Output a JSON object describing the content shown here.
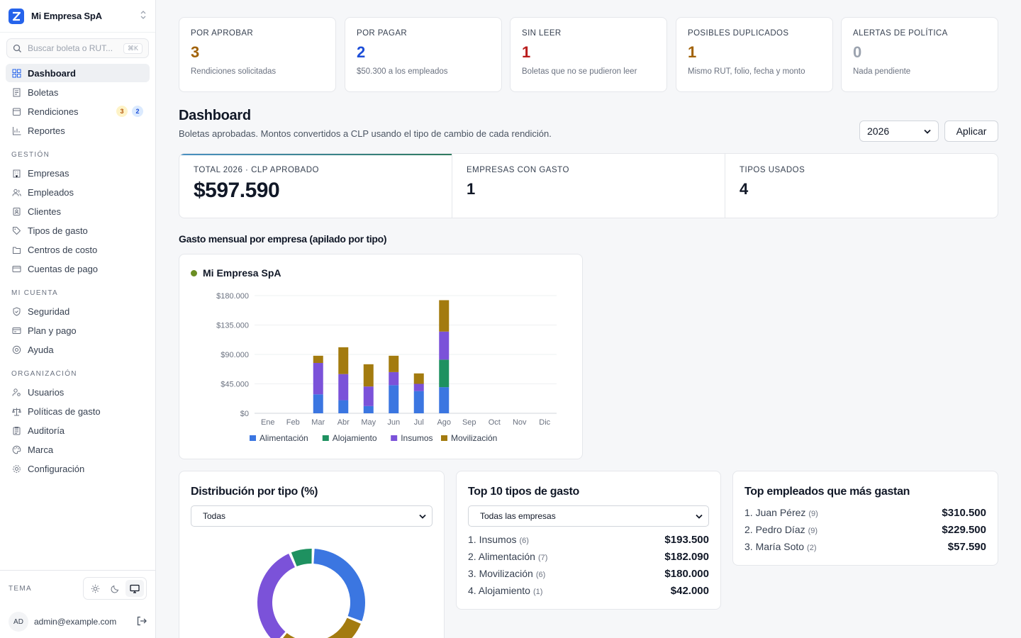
{
  "sidebar": {
    "brand": "Mi Empresa SpA",
    "search_placeholder": "Buscar boleta o RUT...",
    "search_shortcut": "⌘K",
    "main_items": [
      {
        "label": "Dashboard",
        "icon": "grid-icon"
      },
      {
        "label": "Boletas",
        "icon": "receipt-icon"
      },
      {
        "label": "Rendiciones",
        "icon": "folder-icon",
        "badge_pending": "3",
        "badge_info": "2"
      },
      {
        "label": "Reportes",
        "icon": "bar-chart-icon"
      }
    ],
    "gestion_label": "GESTIÓN",
    "gestion_items": [
      {
        "label": "Empresas"
      },
      {
        "label": "Empleados"
      },
      {
        "label": "Clientes"
      },
      {
        "label": "Tipos de gasto"
      },
      {
        "label": "Centros de costo"
      },
      {
        "label": "Cuentas de pago"
      }
    ],
    "cuenta_label": "MI CUENTA",
    "cuenta_items": [
      {
        "label": "Seguridad"
      },
      {
        "label": "Plan y pago"
      },
      {
        "label": "Ayuda"
      }
    ],
    "org_label": "ORGANIZACIÓN",
    "org_items": [
      {
        "label": "Usuarios"
      },
      {
        "label": "Políticas de gasto"
      },
      {
        "label": "Auditoría"
      },
      {
        "label": "Marca"
      },
      {
        "label": "Configuración"
      }
    ],
    "theme_label": "TEMA",
    "user_initials": "AD",
    "user_email": "admin@example.com"
  },
  "kpis": [
    {
      "label": "POR APROBAR",
      "value": "3",
      "sub": "Rendiciones solicitadas",
      "color": "#a16207"
    },
    {
      "label": "POR PAGAR",
      "value": "2",
      "sub": "$50.300 a los empleados",
      "color": "#1d4ed8"
    },
    {
      "label": "SIN LEER",
      "value": "1",
      "sub": "Boletas que no se pudieron leer",
      "color": "#b91c1c"
    },
    {
      "label": "POSIBLES DUPLICADOS",
      "value": "1",
      "sub": "Mismo RUT, folio, fecha y monto",
      "color": "#a16207"
    },
    {
      "label": "ALERTAS DE POLÍTICA",
      "value": "0",
      "sub": "Nada pendiente",
      "color": "#9ca3af"
    }
  ],
  "dashboard": {
    "title": "Dashboard",
    "subtitle": "Boletas aprobadas. Montos convertidos a CLP usando el tipo de cambio de cada rendición.",
    "year": "2026",
    "apply_label": "Aplicar"
  },
  "summary": {
    "total_label": "TOTAL 2026 · CLP APROBADO",
    "total_value": "$597.590",
    "empresas_label": "EMPRESAS CON GASTO",
    "empresas_value": "1",
    "tipos_label": "TIPOS USADOS",
    "tipos_value": "4"
  },
  "chart_heading": "Gasto mensual por empresa (apilado por tipo)",
  "chart_data": {
    "type": "bar",
    "stacked": true,
    "title": "Mi Empresa SpA",
    "categories": [
      "Ene",
      "Feb",
      "Mar",
      "Abr",
      "May",
      "Jun",
      "Jul",
      "Ago",
      "Sep",
      "Oct",
      "Nov",
      "Dic"
    ],
    "series": [
      {
        "name": "Alimentación",
        "color": "#3b76e1",
        "values": [
          0,
          0,
          29000,
          20000,
          11000,
          43000,
          34000,
          40000,
          0,
          0,
          0,
          0
        ]
      },
      {
        "name": "Alojamiento",
        "color": "#1e9160",
        "values": [
          0,
          0,
          0,
          0,
          0,
          0,
          0,
          42000,
          0,
          0,
          0,
          0
        ]
      },
      {
        "name": "Insumos",
        "color": "#7b52d9",
        "values": [
          0,
          0,
          48000,
          40000,
          30000,
          20000,
          11000,
          43000,
          0,
          0,
          0,
          0
        ]
      },
      {
        "name": "Movilización",
        "color": "#a37b0f",
        "values": [
          0,
          0,
          11000,
          41000,
          34000,
          25000,
          16000,
          48000,
          0,
          0,
          0,
          0
        ]
      }
    ],
    "yticks": [
      "$0",
      "$45.000",
      "$90.000",
      "$135.000",
      "$180.000"
    ],
    "ylim": [
      0,
      180000
    ],
    "legend_position": "bottom",
    "grid": true
  },
  "distribucion": {
    "title": "Distribución por tipo (%)",
    "filter": "Todas",
    "donut": [
      {
        "name": "Alimentación",
        "value": 182090,
        "color": "#3b76e1"
      },
      {
        "name": "Movilización",
        "value": 180000,
        "color": "#a37b0f"
      },
      {
        "name": "Insumos",
        "value": 193500,
        "color": "#7b52d9"
      },
      {
        "name": "Alojamiento",
        "value": 42000,
        "color": "#1e9160"
      }
    ]
  },
  "top_tipos": {
    "title": "Top 10 tipos de gasto",
    "filter": "Todas las empresas",
    "rows": [
      {
        "name": "1. Insumos",
        "count": "(6)",
        "amount": "$193.500"
      },
      {
        "name": "2. Alimentación",
        "count": "(7)",
        "amount": "$182.090"
      },
      {
        "name": "3. Movilización",
        "count": "(6)",
        "amount": "$180.000"
      },
      {
        "name": "4. Alojamiento",
        "count": "(1)",
        "amount": "$42.000"
      }
    ]
  },
  "top_empleados": {
    "title": "Top empleados que más gastan",
    "rows": [
      {
        "name": "1. Juan Pérez",
        "count": "(9)",
        "amount": "$310.500"
      },
      {
        "name": "2. Pedro Díaz",
        "count": "(9)",
        "amount": "$229.500"
      },
      {
        "name": "3. María Soto",
        "count": "(2)",
        "amount": "$57.590"
      }
    ]
  }
}
